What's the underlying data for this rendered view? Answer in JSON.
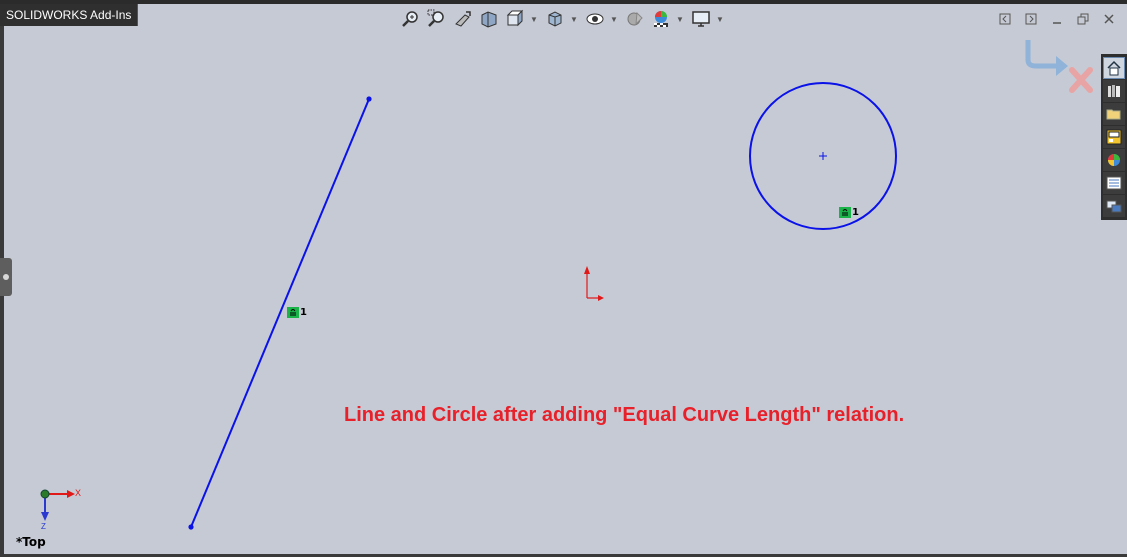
{
  "tab": {
    "label": "SOLIDWORKS Add-Ins"
  },
  "toolbar": {
    "items": [
      "zoom-to-fit-icon",
      "zoom-to-area-icon",
      "previous-view-icon",
      "section-view-icon",
      "view-orientation-icon",
      "display-style-icon",
      "hide-show-items-icon",
      "edit-appearance-icon",
      "apply-scene-icon",
      "view-settings-icon"
    ]
  },
  "task_pane": {
    "items": [
      "home-icon",
      "design-library-icon",
      "file-explorer-icon",
      "view-palette-icon",
      "appearances-icon",
      "custom-properties-icon",
      "forum-icon"
    ]
  },
  "sketch": {
    "line_color": "#0a12e8",
    "origin_color": "#e01818",
    "relation_badge_color": "#19b34a",
    "relation_badge_count": "1"
  },
  "caption": {
    "text": "Line and Circle after adding \"Equal Curve Length\" relation."
  },
  "triad": {
    "x_label": "X",
    "z_label": "Z"
  },
  "view": {
    "name": "*Top"
  }
}
